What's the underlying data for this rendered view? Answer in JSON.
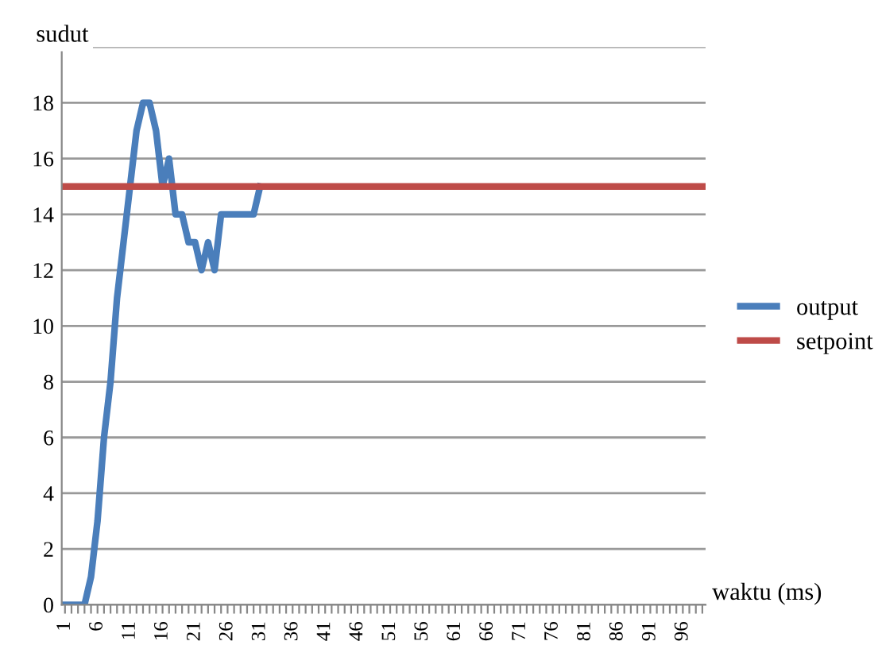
{
  "chart_data": {
    "type": "line",
    "xlabel": "waktu (ms)",
    "ylabel": "sudut",
    "categories": [
      "1",
      null,
      null,
      null,
      null,
      "6",
      null,
      null,
      null,
      null,
      "11",
      null,
      null,
      null,
      null,
      "16",
      null,
      null,
      null,
      null,
      "21",
      null,
      null,
      null,
      null,
      "26",
      null,
      null,
      null,
      null,
      "31",
      null,
      null,
      null,
      null,
      "36",
      null,
      null,
      null,
      null,
      "41",
      null,
      null,
      null,
      null,
      "46",
      null,
      null,
      null,
      null,
      "51",
      null,
      null,
      null,
      null,
      "56",
      null,
      null,
      null,
      null,
      "61",
      null,
      null,
      null,
      null,
      "66",
      null,
      null,
      null,
      null,
      "71",
      null,
      null,
      null,
      null,
      "76",
      null,
      null,
      null,
      null,
      "81",
      null,
      null,
      null,
      null,
      "86",
      null,
      null,
      null,
      null,
      "91",
      null,
      null,
      null,
      null,
      "96",
      null,
      null,
      null
    ],
    "series": [
      {
        "name": "output",
        "color": "#4a7ebb",
        "values": [
          0,
          0,
          0,
          0,
          1,
          3,
          6,
          8,
          11,
          13,
          15,
          17,
          18,
          18,
          17,
          15,
          16,
          14,
          14,
          13,
          13,
          12,
          13,
          12,
          14,
          14,
          14,
          14,
          14,
          14,
          15,
          null,
          null,
          null,
          null,
          null,
          null,
          null,
          null,
          null,
          null,
          null,
          null,
          null,
          null,
          null,
          null,
          null,
          null,
          null,
          null,
          null,
          null,
          null,
          null,
          null,
          null,
          null,
          null,
          null,
          null,
          null,
          null,
          null,
          null,
          null,
          null,
          null,
          null,
          null,
          null,
          null,
          null,
          null,
          null,
          null,
          null,
          null,
          null,
          null,
          null,
          null,
          null,
          null,
          null,
          null,
          null,
          null,
          null,
          null,
          null,
          null,
          null,
          null,
          null,
          null,
          null,
          null,
          null
        ]
      },
      {
        "name": "setpoint",
        "color": "#be4b48",
        "values": [
          15,
          15,
          15,
          15,
          15,
          15,
          15,
          15,
          15,
          15,
          15,
          15,
          15,
          15,
          15,
          15,
          15,
          15,
          15,
          15,
          15,
          15,
          15,
          15,
          15,
          15,
          15,
          15,
          15,
          15,
          15,
          15,
          15,
          15,
          15,
          15,
          15,
          15,
          15,
          15,
          15,
          15,
          15,
          15,
          15,
          15,
          15,
          15,
          15,
          15,
          15,
          15,
          15,
          15,
          15,
          15,
          15,
          15,
          15,
          15,
          15,
          15,
          15,
          15,
          15,
          15,
          15,
          15,
          15,
          15,
          15,
          15,
          15,
          15,
          15,
          15,
          15,
          15,
          15,
          15,
          15,
          15,
          15,
          15,
          15,
          15,
          15,
          15,
          15,
          15,
          15,
          15,
          15,
          15,
          15,
          15,
          15,
          15,
          15
        ]
      }
    ],
    "ylim": [
      0,
      20
    ],
    "yticks": [
      0,
      2,
      4,
      6,
      8,
      10,
      12,
      14,
      16,
      18,
      {
        "value": 20,
        "label": null
      }
    ],
    "grid": "y",
    "legend": "right",
    "marker": "none",
    "line_style": "solid"
  }
}
